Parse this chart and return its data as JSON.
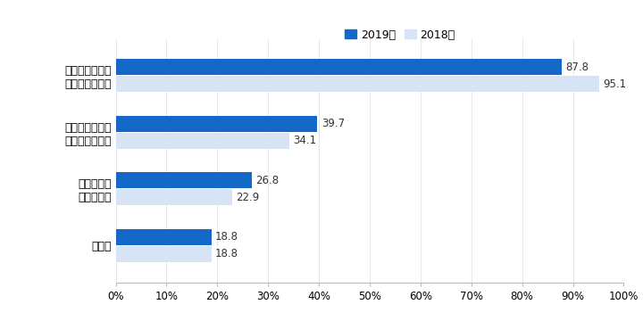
{
  "categories": [
    "惣菜（プロセス\nセンター含む）",
    "水産（プロセス\nセンター含む）",
    "インストア\nベーカリー",
    "その他"
  ],
  "values_2019": [
    87.8,
    39.7,
    26.8,
    18.8
  ],
  "values_2018": [
    95.1,
    34.1,
    22.9,
    18.8
  ],
  "color_2019": "#1469C8",
  "color_2018": "#D6E4F5",
  "legend_2019": "2019年",
  "legend_2018": "2018年",
  "xlim": [
    0,
    100
  ],
  "xtick_values": [
    0,
    10,
    20,
    30,
    40,
    50,
    60,
    70,
    80,
    90,
    100
  ],
  "xtick_labels": [
    "0%",
    "10%",
    "20%",
    "30%",
    "40%",
    "50%",
    "60%",
    "70%",
    "80%",
    "90%",
    "100%"
  ],
  "bar_height": 0.28,
  "bar_gap": 0.02,
  "fontsize_label": 9,
  "fontsize_value": 8.5,
  "fontsize_legend": 9,
  "fontsize_tick": 8.5,
  "background_color": "#ffffff"
}
